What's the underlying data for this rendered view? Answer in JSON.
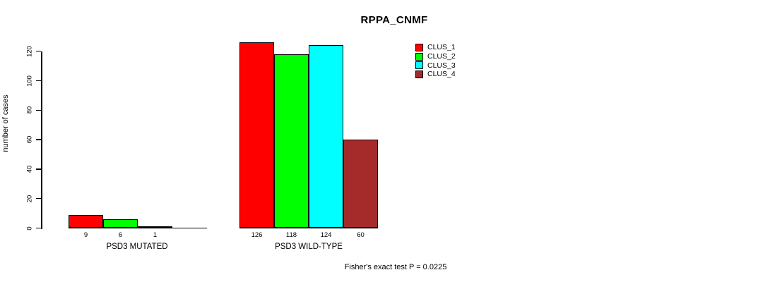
{
  "chart_data": {
    "type": "bar",
    "title": "RPPA_CNMF",
    "ylabel": "number of cases",
    "ylim": [
      0,
      126
    ],
    "yticks": [
      0,
      20,
      40,
      60,
      80,
      100,
      120
    ],
    "grid": false,
    "legend_position": "top-right",
    "series": [
      {
        "name": "CLUS_1",
        "color": "#ff0000"
      },
      {
        "name": "CLUS_2",
        "color": "#00ff00"
      },
      {
        "name": "CLUS_3",
        "color": "#00ffff"
      },
      {
        "name": "CLUS_4",
        "color": "#a52a2a"
      }
    ],
    "groups": [
      {
        "label": "PSD3 MUTATED",
        "values": [
          9,
          6,
          1,
          0
        ],
        "bar_labels": [
          "9",
          "6",
          "1",
          ""
        ]
      },
      {
        "label": "PSD3 WILD-TYPE",
        "values": [
          126,
          118,
          124,
          60
        ],
        "bar_labels": [
          "126",
          "118",
          "124",
          "60"
        ]
      }
    ],
    "annotation": "Fisher's exact test P = 0.0225"
  }
}
